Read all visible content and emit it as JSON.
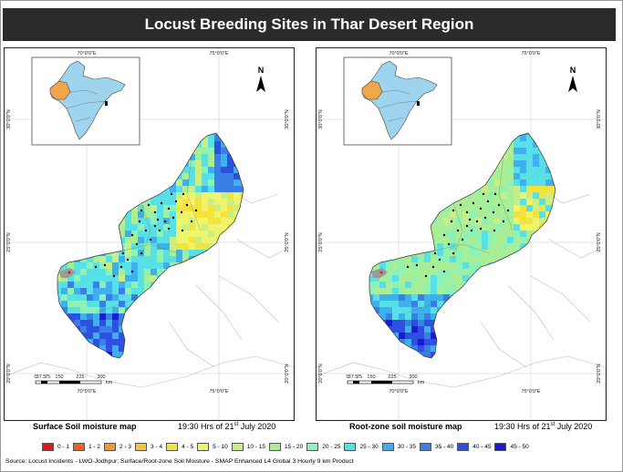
{
  "title": "Locust Breeding Sites in Thar Desert Region",
  "panels": [
    {
      "id": "surface",
      "caption": "Surface Soil moisture map",
      "time": "19:30 Hrs of 21",
      "time_sup": "st",
      "time_suffix": " July 2020",
      "grid_top": [
        "70°0'0\"E",
        "75°0'0\"E"
      ],
      "grid_bottom": [
        "70°0'0\"E",
        "75°0'0\"E"
      ],
      "grid_left": [
        "30°0'0\"N",
        "25°0'0\"N",
        "20°0'0\"N"
      ],
      "grid_right": [
        "30°0'0\"N",
        "25°0'0\"N",
        "20°0'0\"N"
      ],
      "north": "N",
      "scale_labels": [
        "0",
        "37.5",
        "75",
        "150",
        "225",
        "300"
      ],
      "scale_unit": "km"
    },
    {
      "id": "rootzone",
      "caption": "Root-zone soil moisture map",
      "time": "19:30 Hrs of 21",
      "time_sup": "st",
      "time_suffix": " July 2020",
      "grid_top": [
        "70°0'0\"E",
        "75°0'0\"E"
      ],
      "grid_bottom": [
        "70°0'0\"E",
        "75°0'0\"E"
      ],
      "grid_left": [
        "30°0'0\"N",
        "25°0'0\"N",
        "20°0'0\"N"
      ],
      "grid_right": [
        "30°0'0\"N",
        "25°0'0\"N",
        "20°0'0\"N"
      ],
      "north": "N",
      "scale_labels": [
        "0",
        "37.5",
        "75",
        "150",
        "225",
        "300"
      ],
      "scale_unit": "km"
    }
  ],
  "legend": [
    {
      "label": "0 - 1",
      "color": "#e8141b"
    },
    {
      "label": "1 - 2",
      "color": "#f2601c"
    },
    {
      "label": "2 - 3",
      "color": "#f5962a"
    },
    {
      "label": "3 - 4",
      "color": "#f7c437"
    },
    {
      "label": "4 - 5",
      "color": "#f4e33a"
    },
    {
      "label": "5 - 10",
      "color": "#eef56a"
    },
    {
      "label": "10 - 15",
      "color": "#c9ef84"
    },
    {
      "label": "15 - 20",
      "color": "#a8ee96"
    },
    {
      "label": "20 - 25",
      "color": "#8ef2b4"
    },
    {
      "label": "25 - 30",
      "color": "#57e1e6"
    },
    {
      "label": "30 - 35",
      "color": "#3fb0ee"
    },
    {
      "label": "35 - 40",
      "color": "#3a7fe6"
    },
    {
      "label": "40 - 45",
      "color": "#2f4fe0"
    },
    {
      "label": "45 - 50",
      "color": "#1a1ad6"
    }
  ],
  "source": "Source:  Locust Incidents - LWO-Jodhpur; Surface/Root-zone Soil Moisture - SMAP Enhanced L4 Global 3 Hourly 9 km Product",
  "colors": {
    "title_bg": "#2b2b2b",
    "title_fg": "#ffffff",
    "india_fill": "#9fd4ee",
    "rajasthan_fill": "#f2a64a",
    "terrain": "#d9d9d9"
  }
}
